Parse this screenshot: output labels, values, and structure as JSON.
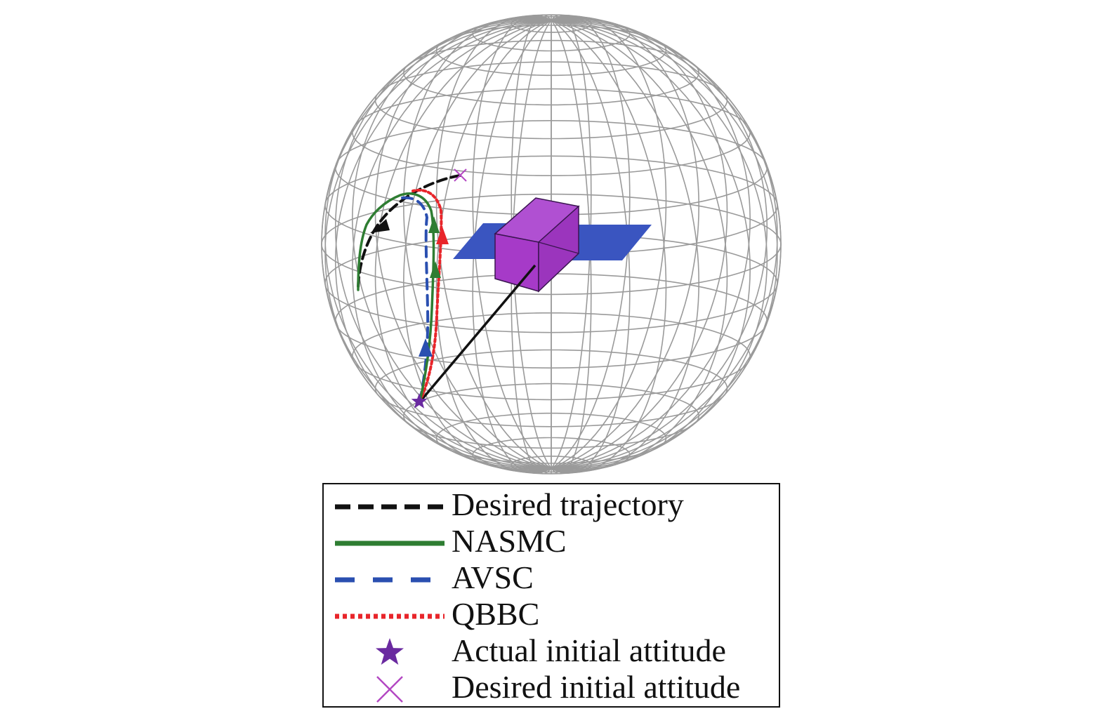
{
  "legend": {
    "entries": [
      {
        "id": "desired-trajectory",
        "label": "Desired trajectory",
        "color": "#111111",
        "style": "long-dash"
      },
      {
        "id": "nasmc",
        "label": "NASMC",
        "color": "#2e7d32",
        "style": "solid"
      },
      {
        "id": "avsc",
        "label": "AVSC",
        "color": "#2a4fb0",
        "style": "dash"
      },
      {
        "id": "qbbc",
        "label": "QBBC",
        "color": "#e8252a",
        "style": "dotted"
      },
      {
        "id": "actual-initial",
        "label": "Actual initial attitude",
        "color": "#6a2aa0",
        "style": "star-marker"
      },
      {
        "id": "desired-initial",
        "label": "Desired initial attitude",
        "color": "#b347c2",
        "style": "x-marker"
      }
    ]
  },
  "colors": {
    "sphere_grid": "#9a9a9a",
    "satellite_body": "#a63ac8",
    "solar_panel": "#3a55c0",
    "pointer_line": "#111111"
  },
  "icons": {
    "satellite": "satellite-icon",
    "actual_initial_marker": "star-icon",
    "desired_initial_marker": "x-mark-icon"
  }
}
